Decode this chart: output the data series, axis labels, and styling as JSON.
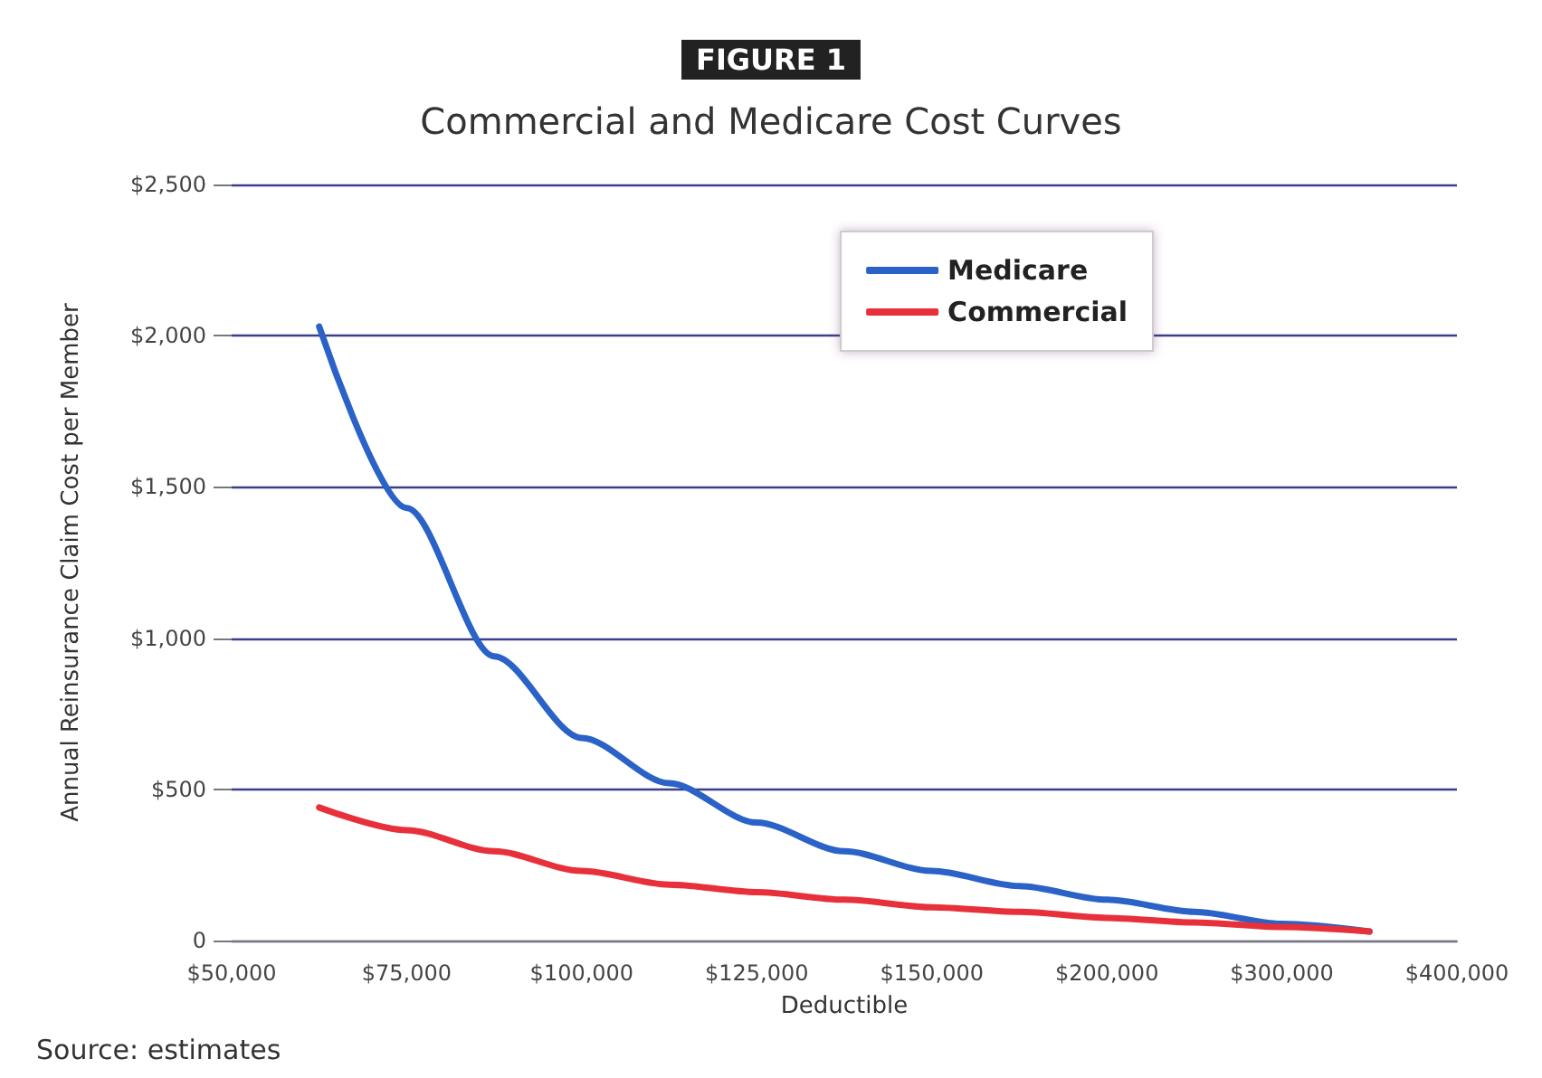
{
  "chart_data": {
    "type": "line",
    "title": "FIGURE 1",
    "subtitle": "Commercial and Medicare Cost Curves",
    "xlabel": "Deductible",
    "ylabel": "Annual Reinsurance Claim Cost per Member",
    "annotations": [
      "Source: estimates"
    ],
    "categories": [
      "$50,000",
      null,
      "$75,000",
      null,
      "$100,000",
      null,
      "$125,000",
      null,
      "$150,000",
      null,
      "$200,000",
      null,
      "$300,000",
      null,
      "$400,000"
    ],
    "series": [
      {
        "name": "Medicare",
        "color": "#2a62c8",
        "values": [
          null,
          2030,
          1430,
          940,
          670,
          520,
          390,
          295,
          230,
          180,
          135,
          95,
          55,
          30,
          null
        ]
      },
      {
        "name": "Commercial",
        "color": "#e8303a",
        "values": [
          null,
          440,
          365,
          295,
          230,
          185,
          160,
          135,
          110,
          95,
          75,
          60,
          45,
          30,
          null
        ]
      }
    ],
    "ylim": [
      0,
      2500
    ],
    "yticks": [
      {
        "value": 0,
        "label": "0"
      },
      {
        "value": 500,
        "label": "$500"
      },
      {
        "value": 1000,
        "label": "$1,000"
      },
      {
        "value": 1500,
        "label": "$1,500"
      },
      {
        "value": 2000,
        "label": "$2,000"
      },
      {
        "value": 2500,
        "label": "$2,500"
      }
    ],
    "grid": "y",
    "legend": "top right",
    "marker": "none",
    "line_style": "solid"
  }
}
